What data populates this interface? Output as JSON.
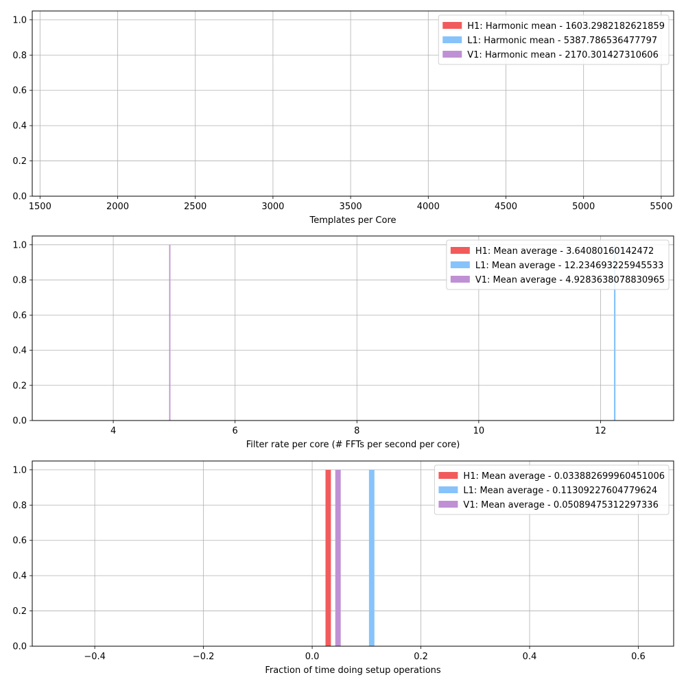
{
  "chart_data": [
    {
      "type": "bar",
      "xlabel": "Templates per Core",
      "ylabel": "",
      "xlim": [
        1450,
        5580
      ],
      "ylim": [
        0,
        1.05
      ],
      "xticks": [
        1500,
        2000,
        2500,
        3000,
        3500,
        4000,
        4500,
        5000,
        5500
      ],
      "yticks": [
        0.0,
        0.2,
        0.4,
        0.6,
        0.8,
        1.0
      ],
      "grid": true,
      "legend_position": "top-right",
      "series": [
        {
          "name": "H1: Harmonic mean  - 1603.2982182621859",
          "color": "#f25b5b",
          "bars": []
        },
        {
          "name": "L1: Harmonic mean  - 5387.786536477797",
          "color": "#87c3fb",
          "bars": []
        },
        {
          "name": "V1: Harmonic mean  - 2170.301427310606",
          "color": "#bf90d4",
          "bars": []
        }
      ]
    },
    {
      "type": "bar",
      "xlabel": "Filter rate per core (# FFTs per second per core)",
      "ylabel": "",
      "xlim": [
        2.67,
        13.2
      ],
      "ylim": [
        0,
        1.05
      ],
      "xticks": [
        4,
        6,
        8,
        10,
        12
      ],
      "yticks": [
        0.0,
        0.2,
        0.4,
        0.6,
        0.8,
        1.0
      ],
      "grid": true,
      "legend_position": "top-right",
      "series": [
        {
          "name": "H1: Mean average - 3.64080160142472",
          "color": "#f25b5b",
          "bars": []
        },
        {
          "name": "L1: Mean average - 12.234693225945533",
          "color": "#87c3fb",
          "bars": [
            {
              "x0": 12.22,
              "x1": 12.245,
              "height": 1.0
            }
          ]
        },
        {
          "name": "V1: Mean average - 4.9283638078830965",
          "color": "#bf90d4",
          "bars": [
            {
              "x0": 4.918,
              "x1": 4.938,
              "height": 1.0
            }
          ]
        }
      ]
    },
    {
      "type": "bar",
      "xlabel": "Fraction of time doing setup operations",
      "ylabel": "",
      "xlim": [
        -0.515,
        0.665
      ],
      "ylim": [
        0,
        1.05
      ],
      "xticks": [
        -0.4,
        -0.2,
        0.0,
        0.2,
        0.4,
        0.6
      ],
      "xtick_labels": [
        "−0.4",
        "−0.2",
        "0.0",
        "0.2",
        "0.4",
        "0.6"
      ],
      "yticks": [
        0.0,
        0.2,
        0.4,
        0.6,
        0.8,
        1.0
      ],
      "grid": true,
      "legend_position": "top-right",
      "series": [
        {
          "name": "H1: Mean average - 0.033882699960451006",
          "color": "#f25b5b",
          "bars": [
            {
              "x0": 0.0245,
              "x1": 0.0345,
              "height": 1.0
            }
          ]
        },
        {
          "name": "L1: Mean average - 0.11309227604779624",
          "color": "#87c3fb",
          "bars": [
            {
              "x0": 0.1045,
              "x1": 0.1145,
              "height": 1.0
            }
          ]
        },
        {
          "name": "V1: Mean average - 0.05089475312297336",
          "color": "#bf90d4",
          "bars": [
            {
              "x0": 0.0425,
              "x1": 0.0525,
              "height": 1.0
            }
          ]
        }
      ]
    }
  ]
}
